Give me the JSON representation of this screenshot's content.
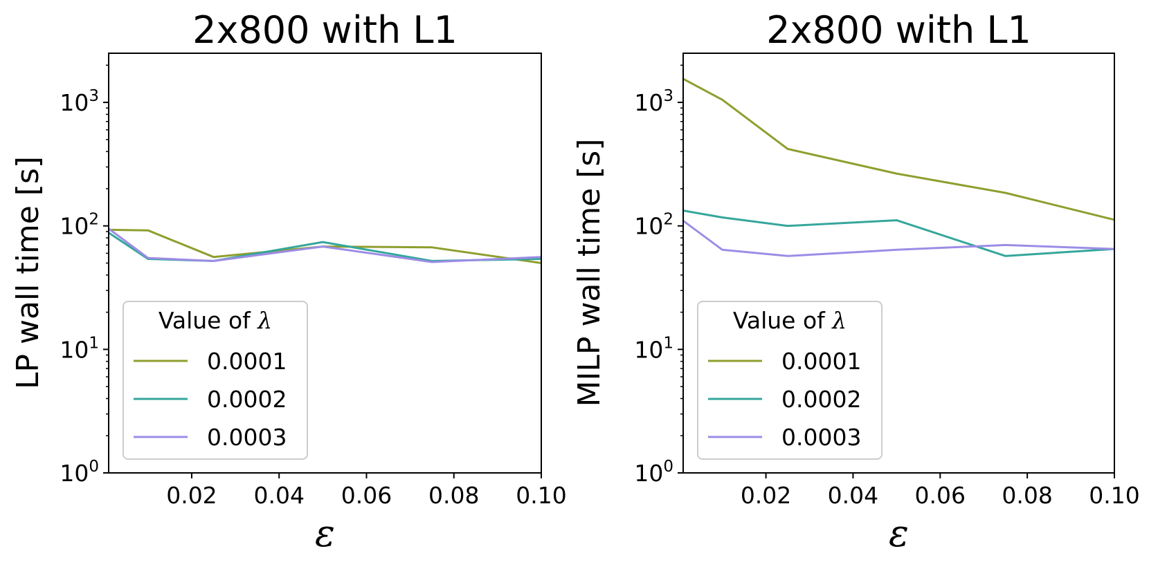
{
  "chart_data": [
    {
      "type": "line",
      "title": "2x800 with L1",
      "xlabel": "ε",
      "ylabel": "LP wall time [s]",
      "yscale": "log",
      "xlim": [
        0.001,
        0.1
      ],
      "ylim": [
        1,
        2500
      ],
      "xticks": [
        "0.02",
        "0.04",
        "0.06",
        "0.08",
        "0.10"
      ],
      "yticks": [
        {
          "base": "10",
          "exp": "0"
        },
        {
          "base": "10",
          "exp": "1"
        },
        {
          "base": "10",
          "exp": "2"
        },
        {
          "base": "10",
          "exp": "3"
        }
      ],
      "legend": {
        "title_prefix": "Value of ",
        "title_symbol": "λ",
        "position": "lower-left"
      },
      "x": [
        0.001,
        0.01,
        0.025,
        0.05,
        0.075,
        0.1
      ],
      "series": [
        {
          "name": "0.0001",
          "color": "#8f9e2e",
          "values": [
            93,
            92,
            56,
            68,
            67,
            50
          ]
        },
        {
          "name": "0.0002",
          "color": "#35a69b",
          "values": [
            88,
            54,
            52,
            74,
            52,
            54
          ]
        },
        {
          "name": "0.0003",
          "color": "#9d8ce6",
          "values": [
            95,
            55,
            52,
            68,
            51,
            56
          ]
        }
      ]
    },
    {
      "type": "line",
      "title": "2x800 with L1",
      "xlabel": "ε",
      "ylabel": "MILP wall time [s]",
      "yscale": "log",
      "xlim": [
        0.001,
        0.1
      ],
      "ylim": [
        1,
        2500
      ],
      "xticks": [
        "0.02",
        "0.04",
        "0.06",
        "0.08",
        "0.10"
      ],
      "yticks": [
        {
          "base": "10",
          "exp": "0"
        },
        {
          "base": "10",
          "exp": "1"
        },
        {
          "base": "10",
          "exp": "2"
        },
        {
          "base": "10",
          "exp": "3"
        }
      ],
      "legend": {
        "title_prefix": "Value of ",
        "title_symbol": "λ",
        "position": "lower-left"
      },
      "x": [
        0.001,
        0.01,
        0.025,
        0.05,
        0.075,
        0.1
      ],
      "series": [
        {
          "name": "0.0001",
          "color": "#8f9e2e",
          "values": [
            1550,
            1050,
            420,
            265,
            185,
            112
          ]
        },
        {
          "name": "0.0002",
          "color": "#35a69b",
          "values": [
            133,
            117,
            100,
            111,
            57,
            65
          ]
        },
        {
          "name": "0.0003",
          "color": "#9d8ce6",
          "values": [
            110,
            64,
            57,
            64,
            70,
            65
          ]
        }
      ]
    }
  ]
}
